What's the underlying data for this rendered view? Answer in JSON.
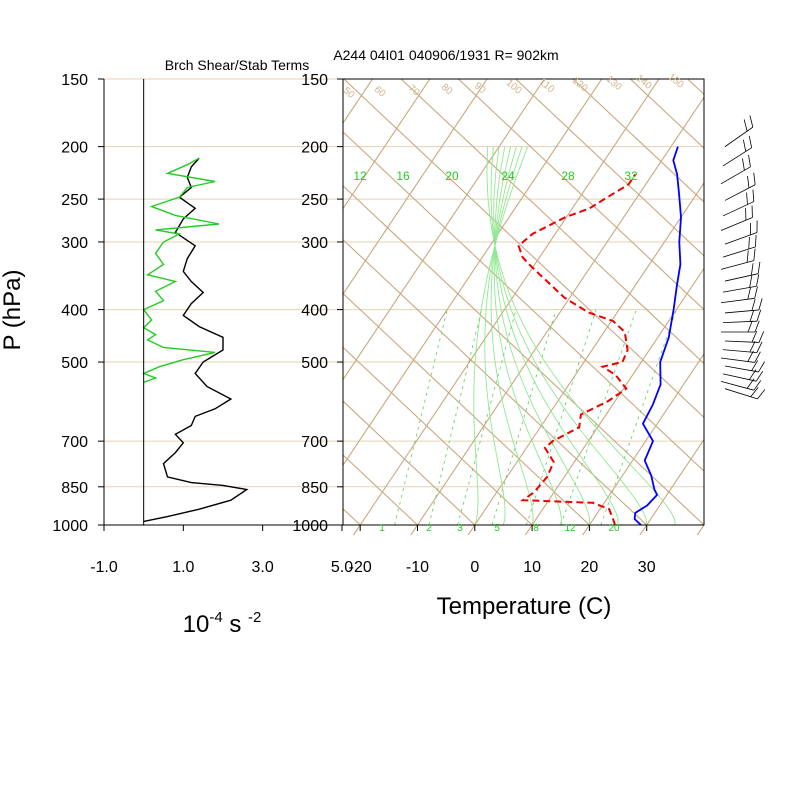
{
  "chart_data": [
    {
      "type": "line",
      "title": "Brch Shear/Stab Terms",
      "xlabel": "10",
      "xlabel_sup": "-4",
      "xlabel_mid": " s ",
      "xlabel_sup2": "-2",
      "ylabel": "P (hPa)",
      "xlim": [
        -1.0,
        5.0
      ],
      "x_ticks": [
        -1.0,
        1.0,
        3.0,
        5.0
      ],
      "x_tick_labels": [
        "-1.0",
        "1.0",
        "3.0",
        "5.0"
      ],
      "y_log": true,
      "ylim": [
        1000,
        150
      ],
      "y_ticks": [
        150,
        200,
        250,
        300,
        400,
        500,
        700,
        850,
        1000
      ],
      "y_tick_labels": [
        "150",
        "200",
        "250",
        "300",
        "400",
        "500",
        "700",
        "850",
        "1000"
      ],
      "grid": true,
      "series": [
        {
          "color": "#000000",
          "points": [
            [
              0.0,
              985
            ],
            [
              0.6,
              965
            ],
            [
              1.4,
              935
            ],
            [
              2.2,
              900
            ],
            [
              2.6,
              860
            ],
            [
              2.0,
              845
            ],
            [
              1.2,
              835
            ],
            [
              0.6,
              815
            ],
            [
              0.5,
              770
            ],
            [
              0.8,
              735
            ],
            [
              1.0,
              705
            ],
            [
              0.8,
              680
            ],
            [
              1.2,
              655
            ],
            [
              1.3,
              630
            ],
            [
              1.8,
              610
            ],
            [
              2.2,
              585
            ],
            [
              1.6,
              555
            ],
            [
              1.3,
              525
            ],
            [
              1.5,
              500
            ],
            [
              2.0,
              475
            ],
            [
              2.0,
              450
            ],
            [
              1.4,
              430
            ],
            [
              1.0,
              410
            ],
            [
              1.2,
              390
            ],
            [
              1.5,
              372
            ],
            [
              1.2,
              355
            ],
            [
              1.0,
              340
            ],
            [
              1.1,
              322
            ],
            [
              1.3,
              305
            ],
            [
              0.8,
              288
            ],
            [
              1.0,
              272
            ],
            [
              1.3,
              260
            ],
            [
              0.9,
              248
            ],
            [
              1.2,
              238
            ],
            [
              1.1,
              228
            ],
            [
              1.2,
              218
            ],
            [
              1.4,
              210
            ]
          ]
        },
        {
          "color": "#22cc22",
          "points": [
            [
              0.0,
              545
            ],
            [
              0.3,
              535
            ],
            [
              0.0,
              525
            ],
            [
              0.4,
              510
            ],
            [
              1.0,
              495
            ],
            [
              1.8,
              480
            ],
            [
              0.5,
              470
            ],
            [
              0.1,
              455
            ],
            [
              0.3,
              445
            ],
            [
              0.0,
              432
            ],
            [
              0.2,
              418
            ],
            [
              0.0,
              400
            ],
            [
              0.5,
              385
            ],
            [
              0.3,
              370
            ],
            [
              0.8,
              355
            ],
            [
              0.1,
              345
            ],
            [
              0.5,
              330
            ],
            [
              0.3,
              315
            ],
            [
              0.5,
              300
            ],
            [
              0.9,
              290
            ],
            [
              0.3,
              285
            ],
            [
              1.9,
              278
            ],
            [
              0.8,
              268
            ],
            [
              0.2,
              258
            ],
            [
              0.9,
              248
            ],
            [
              1.1,
              238
            ],
            [
              1.8,
              232
            ],
            [
              0.6,
              224
            ],
            [
              1.1,
              216
            ],
            [
              1.4,
              210
            ]
          ]
        }
      ]
    },
    {
      "type": "line",
      "title": "A244 04I01 040906/1931 R= 902km",
      "xlabel": "Temperature (C)",
      "xlim": [
        -23,
        40
      ],
      "x_ticks": [
        -20,
        -10,
        0,
        10,
        20,
        30
      ],
      "x_tick_labels": [
        "-20",
        "-10",
        "0",
        "10",
        "20",
        "30"
      ],
      "y_log": true,
      "ylim": [
        1000,
        150
      ],
      "y_ticks": [
        150,
        200,
        250,
        300,
        400,
        500,
        700,
        850,
        1000
      ],
      "y_tick_labels": [
        "150",
        "200",
        "250",
        "300",
        "400",
        "500",
        "700",
        "850",
        "1000"
      ],
      "skew": true,
      "mixing_ratio_labels": [
        "12",
        "16",
        "20",
        "24",
        "28",
        "32"
      ],
      "mixing_ratio_bottom_labels": [
        "1",
        "2",
        "3",
        "5",
        "8",
        "12",
        "20"
      ],
      "dry_adiabat_labels": [
        "50",
        "60",
        "70",
        "80",
        "90",
        "100",
        "110",
        "120",
        "130",
        "140",
        "150"
      ],
      "series": [
        {
          "name": "temperature",
          "color": "#0000ff",
          "points": [
            [
              29.0,
              1000
            ],
            [
              27.2,
              975
            ],
            [
              26.6,
              950
            ],
            [
              27.8,
              920
            ],
            [
              28.3,
              880
            ],
            [
              27.2,
              860
            ],
            [
              25.0,
              810
            ],
            [
              22.1,
              760
            ],
            [
              21.3,
              700
            ],
            [
              17.5,
              650
            ],
            [
              17.0,
              600
            ],
            [
              16.0,
              550
            ],
            [
              13.3,
              500
            ],
            [
              11.9,
              450
            ],
            [
              9.5,
              400
            ],
            [
              7.2,
              360
            ],
            [
              5.4,
              330
            ],
            [
              2.6,
              300
            ],
            [
              0.0,
              270
            ],
            [
              -3.0,
              245
            ],
            [
              -5.7,
              225
            ],
            [
              -8.0,
              212
            ],
            [
              -8.8,
              200
            ]
          ]
        },
        {
          "name": "dewpoint",
          "color": "#ee0000",
          "dashed": true,
          "points": [
            [
              24.5,
              1000
            ],
            [
              23.2,
              970
            ],
            [
              21.6,
              935
            ],
            [
              18.0,
              910
            ],
            [
              5.5,
              900
            ],
            [
              6.5,
              870
            ],
            [
              7.0,
              815
            ],
            [
              6.4,
              765
            ],
            [
              3.2,
              720
            ],
            [
              3.8,
              700
            ],
            [
              6.8,
              660
            ],
            [
              5.6,
              625
            ],
            [
              8.8,
              590
            ],
            [
              10.5,
              560
            ],
            [
              7.0,
              528
            ],
            [
              3.8,
              510
            ],
            [
              6.7,
              500
            ],
            [
              6.2,
              475
            ],
            [
              3.6,
              440
            ],
            [
              0.3,
              420
            ],
            [
              -5.0,
              405
            ],
            [
              -11.0,
              380
            ],
            [
              -21.0,
              330
            ],
            [
              -23.0,
              320
            ],
            [
              -25.0,
              305
            ],
            [
              -24.0,
              290
            ],
            [
              -20.2,
              270
            ],
            [
              -17.0,
              260
            ],
            [
              -15.5,
              250
            ],
            [
              -13.0,
              235
            ],
            [
              -13.0,
              225
            ]
          ]
        }
      ],
      "wind_barbs": {
        "count": 22,
        "color": "#000000"
      }
    }
  ]
}
